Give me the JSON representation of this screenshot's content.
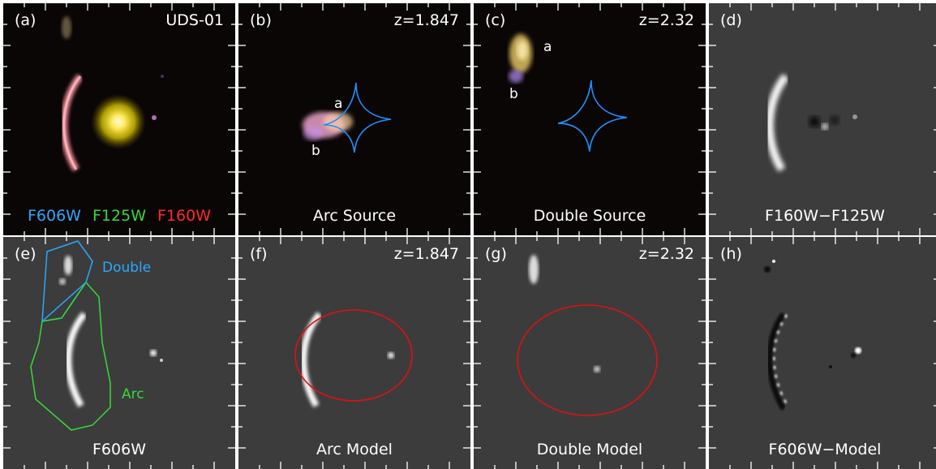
{
  "panels": [
    {
      "id": "a",
      "label": "(a)",
      "corner": "UDS-01",
      "filters": [
        {
          "name": "F606W",
          "color": "#2aa8ff"
        },
        {
          "name": "F125W",
          "color": "#38d838"
        },
        {
          "name": "F160W",
          "color": "#ff2a2a"
        }
      ]
    },
    {
      "id": "b",
      "label": "(b)",
      "corner": "z=1.847",
      "caption": "Arc Source",
      "marks": [
        "a",
        "b"
      ]
    },
    {
      "id": "c",
      "label": "(c)",
      "corner": "z=2.32",
      "caption": "Double Source",
      "marks": [
        "a",
        "b"
      ]
    },
    {
      "id": "d",
      "label": "(d)",
      "caption": "F160W−F125W"
    },
    {
      "id": "e",
      "label": "(e)",
      "caption": "F606W",
      "regions": [
        {
          "name": "Double",
          "color": "#2aa8ff"
        },
        {
          "name": "Arc",
          "color": "#38d838"
        }
      ]
    },
    {
      "id": "f",
      "label": "(f)",
      "corner": "z=1.847",
      "caption": "Arc Model"
    },
    {
      "id": "g",
      "label": "(g)",
      "corner": "z=2.32",
      "caption": "Double Model"
    },
    {
      "id": "h",
      "label": "(h)",
      "caption": "F606W−Model"
    }
  ],
  "colors": {
    "caustic": "#1e90ff",
    "critical_curve": "#e01010",
    "color_panel_bg": "#0a0605",
    "gray_panel_bg": "#3c3c3c"
  }
}
